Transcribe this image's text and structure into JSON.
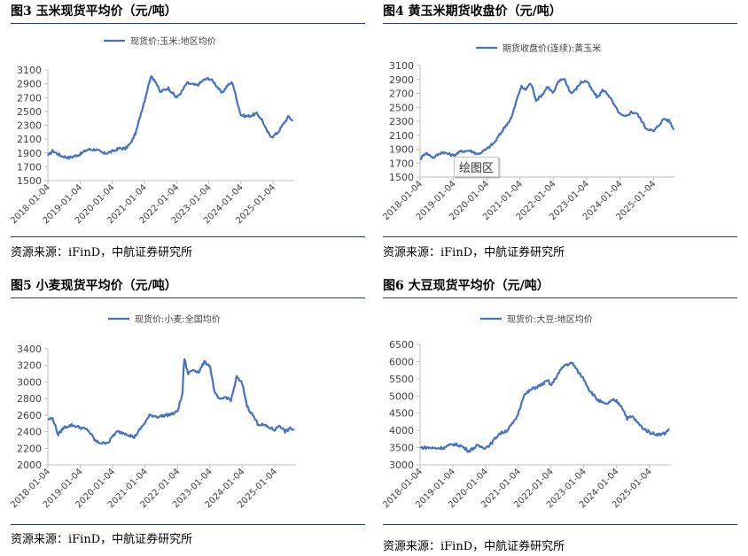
{
  "figures": [
    {
      "title": "图3  玉米现货平均价（元/吨）",
      "source": "资源来源：iFinD，中航证券研究所"
    },
    {
      "title": "图4  黄玉米期货收盘价（元/吨）",
      "source": "资源来源：iFinD，中航证券研究所",
      "tooltip": "绘图区"
    },
    {
      "title": "图5  小麦现货平均价（元/吨）",
      "source": "资源来源：iFinD，中航证券研究所"
    },
    {
      "title": "图6  大豆现货平均价（元/吨）",
      "source": "资源来源：iFinD，中航证券研究所"
    }
  ],
  "colors": {
    "line": "#4472c4",
    "rule": "#1f3f66",
    "axis": "#bfbfbf"
  },
  "chart_data": [
    {
      "type": "line",
      "title": "",
      "legend": "top-center",
      "x_ticks": [
        "2018-01-04",
        "2019-01-04",
        "2020-01-04",
        "2021-01-04",
        "2022-01-04",
        "2023-01-04",
        "2024-01-04",
        "2025-01-04"
      ],
      "xlim": [
        "2018-01-04",
        "2025-09-01"
      ],
      "ylim": [
        1500,
        3100
      ],
      "y_ticks": [
        1500,
        1700,
        1900,
        2100,
        2300,
        2500,
        2700,
        2900,
        3100
      ],
      "grid": false,
      "series": [
        {
          "name": "现货价:玉米:地区均价",
          "x": [
            "2018-01-04",
            "2018-03-01",
            "2018-06-01",
            "2018-09-01",
            "2019-01-04",
            "2019-04-01",
            "2019-07-01",
            "2019-10-01",
            "2020-01-04",
            "2020-04-01",
            "2020-06-01",
            "2020-08-01",
            "2020-10-01",
            "2020-12-01",
            "2021-01-15",
            "2021-03-15",
            "2021-05-01",
            "2021-07-01",
            "2021-10-01",
            "2022-01-04",
            "2022-03-01",
            "2022-05-01",
            "2022-07-01",
            "2022-09-01",
            "2022-11-01",
            "2023-01-04",
            "2023-03-01",
            "2023-04-15",
            "2023-06-01",
            "2023-08-01",
            "2023-10-01",
            "2023-11-20",
            "2024-01-04",
            "2024-03-01",
            "2024-05-01",
            "2024-07-01",
            "2024-09-01",
            "2024-10-15",
            "2024-12-01",
            "2025-01-04",
            "2025-03-01",
            "2025-05-01",
            "2025-07-01",
            "2025-08-15"
          ],
          "values": [
            1860,
            1930,
            1860,
            1830,
            1880,
            1950,
            1950,
            1890,
            1920,
            1970,
            1960,
            2040,
            2200,
            2500,
            2700,
            3000,
            2960,
            2780,
            2840,
            2700,
            2780,
            2910,
            2890,
            2880,
            2950,
            2980,
            2930,
            2850,
            2760,
            2870,
            2920,
            2660,
            2450,
            2430,
            2440,
            2470,
            2380,
            2240,
            2150,
            2140,
            2200,
            2320,
            2430,
            2360
          ]
        }
      ]
    },
    {
      "type": "line",
      "title": "",
      "legend": "top-center",
      "x_ticks": [
        "2018-01-04",
        "2019-01-04",
        "2020-01-04",
        "2021-01-04",
        "2022-01-04",
        "2023-01-04",
        "2024-01-04",
        "2025-01-04"
      ],
      "xlim": [
        "2018-01-04",
        "2025-09-01"
      ],
      "ylim": [
        1500,
        3100
      ],
      "y_ticks": [
        1500,
        1700,
        1900,
        2100,
        2300,
        2500,
        2700,
        2900,
        3100
      ],
      "grid": false,
      "series": [
        {
          "name": "期货收盘价(连续):黄玉米",
          "x": [
            "2018-01-04",
            "2018-03-01",
            "2018-06-01",
            "2018-09-01",
            "2019-01-04",
            "2019-04-01",
            "2019-07-01",
            "2019-10-01",
            "2020-01-04",
            "2020-04-01",
            "2020-07-01",
            "2020-10-01",
            "2020-12-01",
            "2021-01-15",
            "2021-03-01",
            "2021-05-01",
            "2021-07-01",
            "2021-09-15",
            "2021-11-01",
            "2022-01-04",
            "2022-03-01",
            "2022-05-01",
            "2022-07-15",
            "2022-09-01",
            "2022-11-01",
            "2023-01-04",
            "2023-03-01",
            "2023-05-01",
            "2023-07-01",
            "2023-09-01",
            "2023-11-01",
            "2024-01-04",
            "2024-03-01",
            "2024-05-01",
            "2024-07-01",
            "2024-09-01",
            "2024-10-15",
            "2024-12-01",
            "2025-01-04",
            "2025-03-01",
            "2025-05-01",
            "2025-07-01",
            "2025-08-15"
          ],
          "values": [
            1750,
            1850,
            1780,
            1860,
            1810,
            1870,
            1880,
            1830,
            1900,
            2000,
            2180,
            2350,
            2620,
            2800,
            2750,
            2850,
            2600,
            2700,
            2800,
            2700,
            2870,
            2920,
            2700,
            2750,
            2860,
            2880,
            2750,
            2640,
            2750,
            2680,
            2530,
            2400,
            2360,
            2430,
            2420,
            2300,
            2200,
            2180,
            2150,
            2240,
            2340,
            2300,
            2180
          ]
        }
      ]
    },
    {
      "type": "line",
      "title": "",
      "legend": "top-center",
      "x_ticks": [
        "2018-01-04",
        "2019-01-04",
        "2020-01-04",
        "2021-01-04",
        "2022-01-04",
        "2023-01-04",
        "2024-01-04",
        "2025-01-04"
      ],
      "xlim": [
        "2018-01-04",
        "2025-09-01"
      ],
      "ylim": [
        2000,
        3400
      ],
      "y_ticks": [
        2000,
        2200,
        2400,
        2600,
        2800,
        3000,
        3200,
        3400
      ],
      "grid": false,
      "series": [
        {
          "name": "现货价:小麦:全国均价",
          "x": [
            "2018-01-04",
            "2018-03-01",
            "2018-05-01",
            "2018-07-01",
            "2018-10-01",
            "2019-01-04",
            "2019-04-01",
            "2019-07-01",
            "2019-09-15",
            "2019-12-01",
            "2020-01-04",
            "2020-03-01",
            "2020-06-01",
            "2020-09-01",
            "2020-12-01",
            "2021-03-01",
            "2021-06-01",
            "2021-09-01",
            "2021-12-01",
            "2022-01-04",
            "2022-03-01",
            "2022-03-20",
            "2022-05-01",
            "2022-07-01",
            "2022-09-01",
            "2022-11-01",
            "2023-01-04",
            "2023-03-01",
            "2023-05-01",
            "2023-07-01",
            "2023-09-01",
            "2023-11-01",
            "2024-01-04",
            "2024-03-01",
            "2024-05-01",
            "2024-07-01",
            "2024-09-01",
            "2024-11-01",
            "2025-01-04",
            "2025-03-01",
            "2025-05-01",
            "2025-07-01",
            "2025-08-15"
          ],
          "values": [
            2550,
            2560,
            2360,
            2450,
            2480,
            2450,
            2420,
            2280,
            2260,
            2280,
            2350,
            2400,
            2380,
            2330,
            2460,
            2600,
            2580,
            2600,
            2620,
            2650,
            2850,
            3300,
            3100,
            3150,
            3120,
            3240,
            3200,
            2860,
            2780,
            2820,
            2780,
            3060,
            2980,
            2700,
            2600,
            2490,
            2480,
            2450,
            2420,
            2480,
            2400,
            2440,
            2420
          ]
        }
      ]
    },
    {
      "type": "line",
      "title": "",
      "legend": "top-center",
      "x_ticks": [
        "2018-01-04",
        "2019-01-04",
        "2020-01-04",
        "2021-01-04",
        "2022-01-04",
        "2023-01-04",
        "2024-01-04",
        "2025-01-04"
      ],
      "xlim": [
        "2018-01-04",
        "2025-09-01"
      ],
      "ylim": [
        3000,
        6500
      ],
      "y_ticks": [
        3000,
        3500,
        4000,
        4500,
        5000,
        5500,
        6000,
        6500
      ],
      "grid": false,
      "series": [
        {
          "name": "现货价:大豆:地区均价",
          "x": [
            "2018-01-04",
            "2018-04-01",
            "2018-07-01",
            "2018-10-01",
            "2019-01-04",
            "2019-04-01",
            "2019-07-01",
            "2019-10-01",
            "2020-01-04",
            "2020-03-01",
            "2020-06-01",
            "2020-09-01",
            "2020-12-01",
            "2021-01-04",
            "2021-03-01",
            "2021-06-01",
            "2021-09-01",
            "2021-12-01",
            "2022-01-04",
            "2022-03-01",
            "2022-06-01",
            "2022-09-01",
            "2022-11-01",
            "2023-01-04",
            "2023-03-01",
            "2023-06-01",
            "2023-09-01",
            "2023-12-01",
            "2024-01-04",
            "2024-03-01",
            "2024-05-01",
            "2024-07-01",
            "2024-09-01",
            "2024-11-01",
            "2025-01-04",
            "2025-03-01",
            "2025-05-01",
            "2025-07-01",
            "2025-08-15"
          ],
          "values": [
            3500,
            3500,
            3480,
            3500,
            3600,
            3560,
            3400,
            3550,
            3500,
            3600,
            3900,
            4000,
            4300,
            4500,
            5000,
            5200,
            5300,
            5450,
            5300,
            5550,
            5900,
            5950,
            5700,
            5500,
            5200,
            4900,
            4750,
            4880,
            4850,
            4700,
            4350,
            4400,
            4200,
            4050,
            3950,
            3900,
            3880,
            3920,
            4050
          ]
        }
      ]
    }
  ]
}
